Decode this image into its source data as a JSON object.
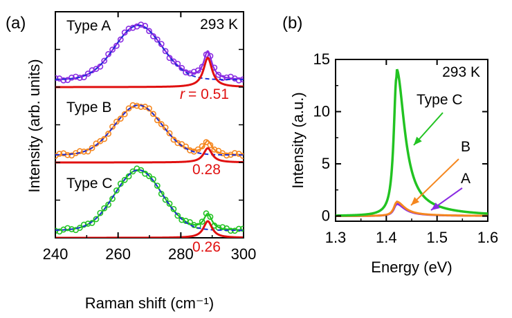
{
  "panels": {
    "a": {
      "label": "(a)",
      "temperature": "293 K"
    },
    "b": {
      "label": "(b)",
      "temperature": "293 K"
    }
  },
  "colors": {
    "type_a": "#8a2be2",
    "type_b": "#f5871f",
    "type_c": "#22c322",
    "fit_peak": "#e01010",
    "fit_broad": "#1f2fd6",
    "axes": "#000000"
  },
  "chart_data": [
    {
      "type": "line",
      "panel": "(a)",
      "xlabel": "Raman shift (cm⁻¹)",
      "ylabel": "Intensity (arb. units)",
      "xlim": [
        240,
        300
      ],
      "xticks": [
        240,
        260,
        280,
        300
      ],
      "ylim": [
        0,
        3
      ],
      "y_tick_labels_shown": false,
      "broad_peak": {
        "center": 266.5,
        "width": 7.5
      },
      "sharp_peak": {
        "center": 288.6,
        "width": 1.6
      },
      "spectra": [
        {
          "name": "Type A",
          "color": "#8a2be2",
          "offset": 2.0,
          "broad_amp": 0.72,
          "sharp_amp": 0.37,
          "r_label": "= 0.51",
          "r_symbol": "r"
        },
        {
          "name": "Type B",
          "color": "#f5871f",
          "offset": 1.0,
          "broad_amp": 0.66,
          "sharp_amp": 0.18,
          "r_label": "0.28"
        },
        {
          "name": "Type C",
          "color": "#22c322",
          "offset": 0.0,
          "broad_amp": 0.8,
          "sharp_amp": 0.21,
          "r_label": "0.26"
        }
      ]
    },
    {
      "type": "line",
      "panel": "(b)",
      "xlabel": "Energy (eV)",
      "ylabel": "Intensity (a.u.)",
      "xlim": [
        1.3,
        1.6
      ],
      "xticks": [
        "1.3",
        "1.4",
        "1.5",
        "1.6"
      ],
      "ylim": [
        -0.5,
        15
      ],
      "yticks": [
        "0",
        "5",
        "10",
        "15"
      ],
      "peak_energy": 1.42,
      "series": [
        {
          "name": "Type C",
          "color": "#22c322",
          "peak": 13.3
        },
        {
          "name": "B",
          "color": "#f5871f",
          "peak": 1.3
        },
        {
          "name": "A",
          "color": "#8a2be2",
          "peak": 1.1
        }
      ]
    }
  ]
}
